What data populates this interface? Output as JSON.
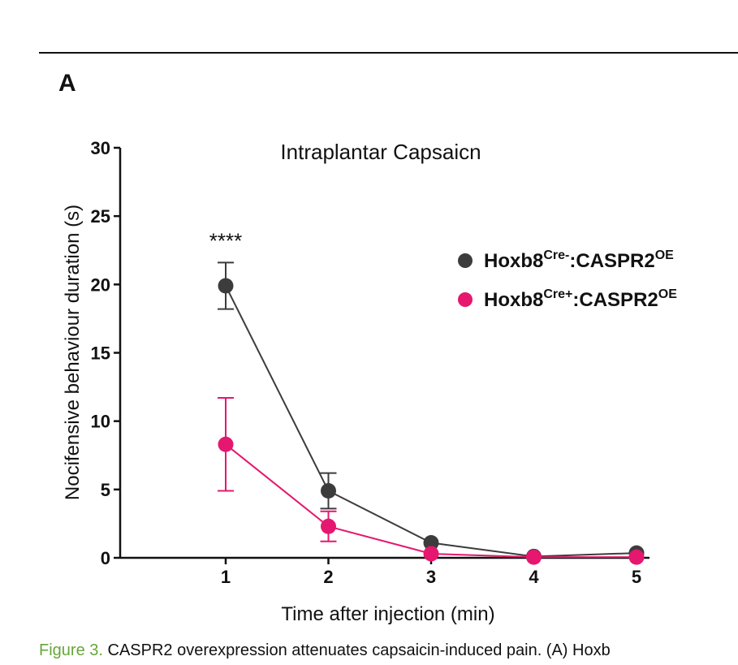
{
  "panel_label": "A",
  "caption": {
    "figure_number": "Figure 3.",
    "text": " CASPR2 overexpression attenuates capsaicin-induced pain. (A) Hoxb"
  },
  "chart_data": {
    "type": "line",
    "title": "Intraplantar Capsaicn",
    "xlabel": "Time after injection (min)",
    "ylabel": "Nocifensive behaviour duration (s)",
    "x": [
      1,
      2,
      3,
      4,
      5
    ],
    "x_ticks": [
      "1",
      "2",
      "3",
      "4",
      "5"
    ],
    "ylim": [
      0,
      30
    ],
    "y_ticks": [
      "0",
      "5",
      "10",
      "15",
      "20",
      "25",
      "30"
    ],
    "grid": false,
    "legend_position": "top-right",
    "series": [
      {
        "legend_base": "Hoxb8",
        "legend_sup1": "Cre-",
        "legend_mid": ":CASPR2",
        "legend_sup2": "OE",
        "color": "#3c3c3c",
        "values": [
          19.9,
          4.9,
          1.1,
          0.1,
          0.35
        ],
        "error": [
          1.7,
          1.3,
          0.0,
          0.0,
          0.0
        ]
      },
      {
        "legend_base": "Hoxb8",
        "legend_sup1": "Cre+",
        "legend_mid": ":CASPR2",
        "legend_sup2": "OE",
        "color": "#e5176f",
        "values": [
          8.3,
          2.3,
          0.3,
          0.05,
          0.05
        ],
        "error": [
          3.4,
          1.1,
          0.0,
          0.0,
          0.0
        ]
      }
    ],
    "annotations": [
      {
        "text": "****",
        "x": 1,
        "y": 23.6
      }
    ]
  }
}
